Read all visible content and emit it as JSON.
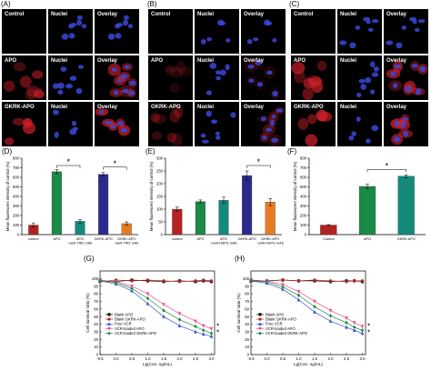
{
  "panels": {
    "A": {
      "label": "(A)"
    },
    "B": {
      "label": "(B)"
    },
    "C": {
      "label": "(C)"
    },
    "D": {
      "label": "(D)"
    },
    "E": {
      "label": "(E)"
    },
    "F": {
      "label": "(F)"
    },
    "G": {
      "label": "(G)"
    },
    "H": {
      "label": "(H)"
    }
  },
  "micrographs": {
    "column_labels": [
      "Nuclei",
      "Overlay"
    ],
    "row_labels": [
      "Control",
      "APO",
      "GKRK-APO"
    ],
    "overlay_first_row": "Overlay"
  },
  "colors": {
    "red": "#b22222",
    "green": "#1a8a44",
    "teal": "#138a7a",
    "navy": "#2b2a8c",
    "orange": "#e87b22",
    "black": "#111111",
    "pink": "#e8508c",
    "blue": "#3a55c8"
  },
  "chart_data": [
    {
      "panel": "D",
      "type": "bar",
      "categories": [
        "control",
        "APO",
        "APO\n+anti-TfR1 mAb",
        "GKRK-APO",
        "GKRK-APO\n+anti-TfR1 mAb"
      ],
      "values": [
        100,
        660,
        140,
        632,
        115
      ],
      "errors": [
        22,
        22,
        18,
        18,
        18
      ],
      "colors": [
        "#b22222",
        "#1a8a44",
        "#138a7a",
        "#2b2a8c",
        "#e87b22"
      ],
      "ylabel": "Mean fluorescent intensity of control (%)",
      "ylim": [
        0,
        800
      ],
      "yticks": [
        0,
        100,
        200,
        300,
        400,
        500,
        600,
        700,
        800
      ],
      "significance": [
        {
          "from": 1,
          "to": 2,
          "label": "*"
        },
        {
          "from": 3,
          "to": 4,
          "label": "*"
        }
      ]
    },
    {
      "panel": "E",
      "type": "bar",
      "categories": [
        "control",
        "APO",
        "APO\n+anti-HSPG mAb",
        "GKRK-APO",
        "GKRK-APO\n+anti-HSPG mAb"
      ],
      "values": [
        100,
        130,
        135,
        232,
        128
      ],
      "errors": [
        8,
        6,
        12,
        18,
        14
      ],
      "colors": [
        "#b22222",
        "#1a8a44",
        "#138a7a",
        "#2b2a8c",
        "#e87b22"
      ],
      "ylabel": "Mean fluorescent intensity of control (%)",
      "ylim": [
        0,
        300
      ],
      "yticks": [
        0,
        50,
        100,
        150,
        200,
        250,
        300
      ],
      "significance": [
        {
          "from": 3,
          "to": 4,
          "label": "*"
        }
      ]
    },
    {
      "panel": "F",
      "type": "bar",
      "categories": [
        "Control",
        "APO",
        "GKRK-APO"
      ],
      "values": [
        100,
        505,
        612
      ],
      "errors": [
        5,
        22,
        14
      ],
      "colors": [
        "#b22222",
        "#1a8a44",
        "#138a7a"
      ],
      "ylabel": "Mean fluorescent intensity of control (%)",
      "ylim": [
        0,
        800
      ],
      "yticks": [
        0,
        100,
        200,
        300,
        400,
        500,
        600,
        700,
        800
      ],
      "significance": [
        {
          "from": 1,
          "to": 2,
          "label": "*"
        }
      ]
    },
    {
      "panel": "G",
      "type": "line",
      "xlabel": "Lg(Con. ng/mL)",
      "ylabel": "Cell survival ratio (%)",
      "xlim": [
        -0.5,
        3.1
      ],
      "ylim": [
        0,
        110
      ],
      "xticks": [
        -0.5,
        0.0,
        0.5,
        1.0,
        1.5,
        2.0,
        2.5,
        3.0
      ],
      "yticks": [
        0,
        10,
        20,
        30,
        40,
        50,
        60,
        70,
        80,
        90,
        100
      ],
      "x": [
        -0.5,
        0.0,
        0.5,
        1.0,
        1.5,
        2.0,
        2.5,
        2.75,
        3.0
      ],
      "series": [
        {
          "name": "Blank APO",
          "color": "#111111",
          "marker": "square",
          "values": [
            97,
            96,
            98,
            97,
            96,
            97,
            96,
            97,
            96
          ]
        },
        {
          "name": "Blank GKRK-APO",
          "color": "#b22222",
          "marker": "circle",
          "values": [
            96,
            98,
            97,
            98,
            97,
            96,
            97,
            98,
            97
          ]
        },
        {
          "name": "Free VCR",
          "color": "#3a55c8",
          "marker": "triangle",
          "values": [
            97,
            93,
            84,
            67,
            50,
            38,
            30,
            27,
            24
          ]
        },
        {
          "name": "VCR-loaded APO",
          "color": "#e8508c",
          "marker": "triangle-down",
          "values": [
            98,
            96,
            90,
            80,
            66,
            54,
            44,
            38,
            34
          ]
        },
        {
          "name": "VCR-loaded GKRK-APO",
          "color": "#1a8a44",
          "marker": "diamond",
          "values": [
            97,
            95,
            87,
            74,
            58,
            46,
            37,
            32,
            28
          ]
        }
      ],
      "annotations": [
        "*",
        "*"
      ]
    },
    {
      "panel": "H",
      "type": "line",
      "xlabel": "Lg(Con. ng/mL)",
      "ylabel": "Cell survival ratio (%)",
      "xlim": [
        -0.5,
        3.1
      ],
      "ylim": [
        0,
        110
      ],
      "xticks": [
        -0.5,
        0.0,
        0.5,
        1.0,
        1.5,
        2.0,
        2.5,
        3.0
      ],
      "yticks": [
        0,
        10,
        20,
        30,
        40,
        50,
        60,
        70,
        80,
        90,
        100
      ],
      "x": [
        -0.5,
        0.0,
        0.5,
        1.0,
        1.5,
        2.0,
        2.5,
        2.75,
        3.0
      ],
      "series": [
        {
          "name": "Blank APO",
          "color": "#111111",
          "marker": "square",
          "values": [
            97,
            97,
            98,
            97,
            97,
            96,
            97,
            97,
            96
          ]
        },
        {
          "name": "Blank GKRK-APO",
          "color": "#b22222",
          "marker": "circle",
          "values": [
            96,
            97,
            98,
            97,
            98,
            97,
            96,
            97,
            97
          ]
        },
        {
          "name": "Free VCR",
          "color": "#3a55c8",
          "marker": "triangle",
          "values": [
            97,
            94,
            86,
            72,
            56,
            44,
            36,
            32,
            28
          ]
        },
        {
          "name": "VCR-loaded APO",
          "color": "#e8508c",
          "marker": "triangle-down",
          "values": [
            98,
            97,
            92,
            83,
            70,
            58,
            48,
            42,
            37
          ]
        },
        {
          "name": "VCR-loaded GKRK-APO",
          "color": "#1a8a44",
          "marker": "diamond",
          "values": [
            97,
            96,
            89,
            78,
            63,
            51,
            42,
            36,
            32
          ]
        }
      ],
      "annotations": [
        "*",
        "*"
      ]
    }
  ]
}
